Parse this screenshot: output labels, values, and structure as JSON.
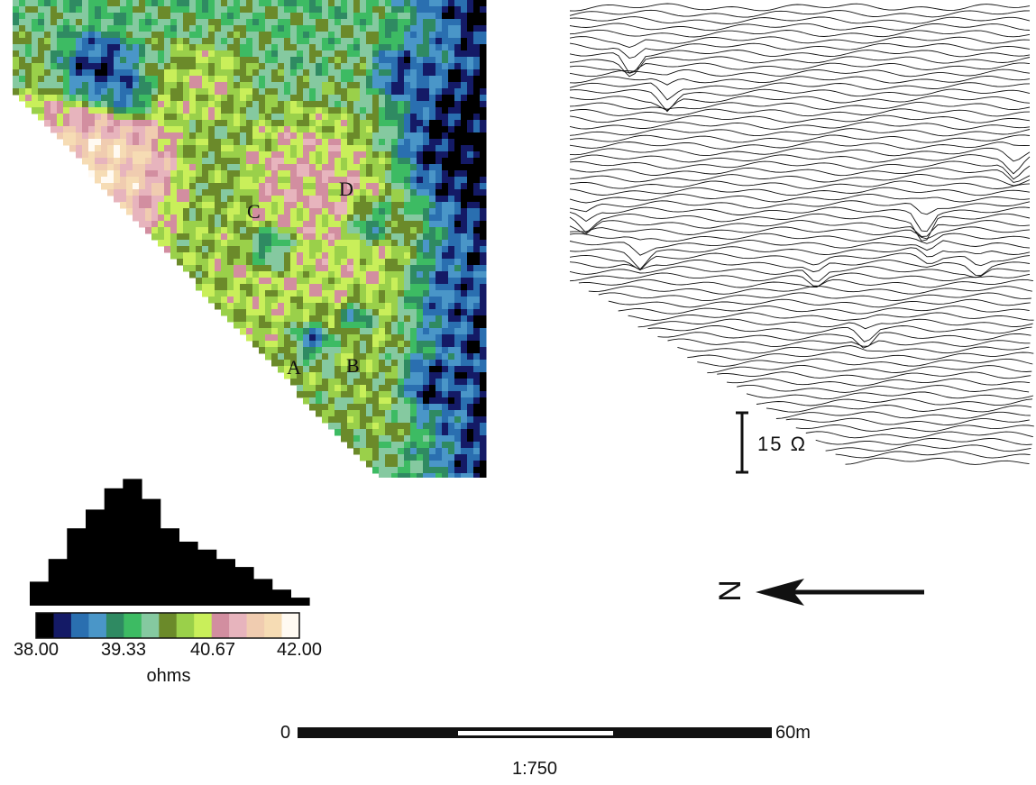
{
  "map": {
    "title": "",
    "feature_labels": [
      "A",
      "B",
      "C",
      "D"
    ],
    "palette": [
      "#000000",
      "#141a66",
      "#2a6fb0",
      "#4a96c8",
      "#2f8a62",
      "#3dbb63",
      "#85c9a0",
      "#6b8a2a",
      "#9ad04a",
      "#c9ef5a",
      "#d28ea0",
      "#e7b4bd",
      "#f0ccb0",
      "#f6dcb4",
      "#fffaf2"
    ]
  },
  "legend": {
    "ticks": [
      "38.00",
      "39.33",
      "40.67",
      "42.00"
    ],
    "unit": "ohms",
    "histogram_bins": [
      0.18,
      0.35,
      0.58,
      0.72,
      0.88,
      0.95,
      0.8,
      0.58,
      0.48,
      0.42,
      0.35,
      0.29,
      0.2,
      0.12,
      0.06
    ]
  },
  "traces": {
    "scale_label": "15 Ω"
  },
  "north_label": "N",
  "scale": {
    "start": "0",
    "end": "60m",
    "ratio": "1:750"
  }
}
